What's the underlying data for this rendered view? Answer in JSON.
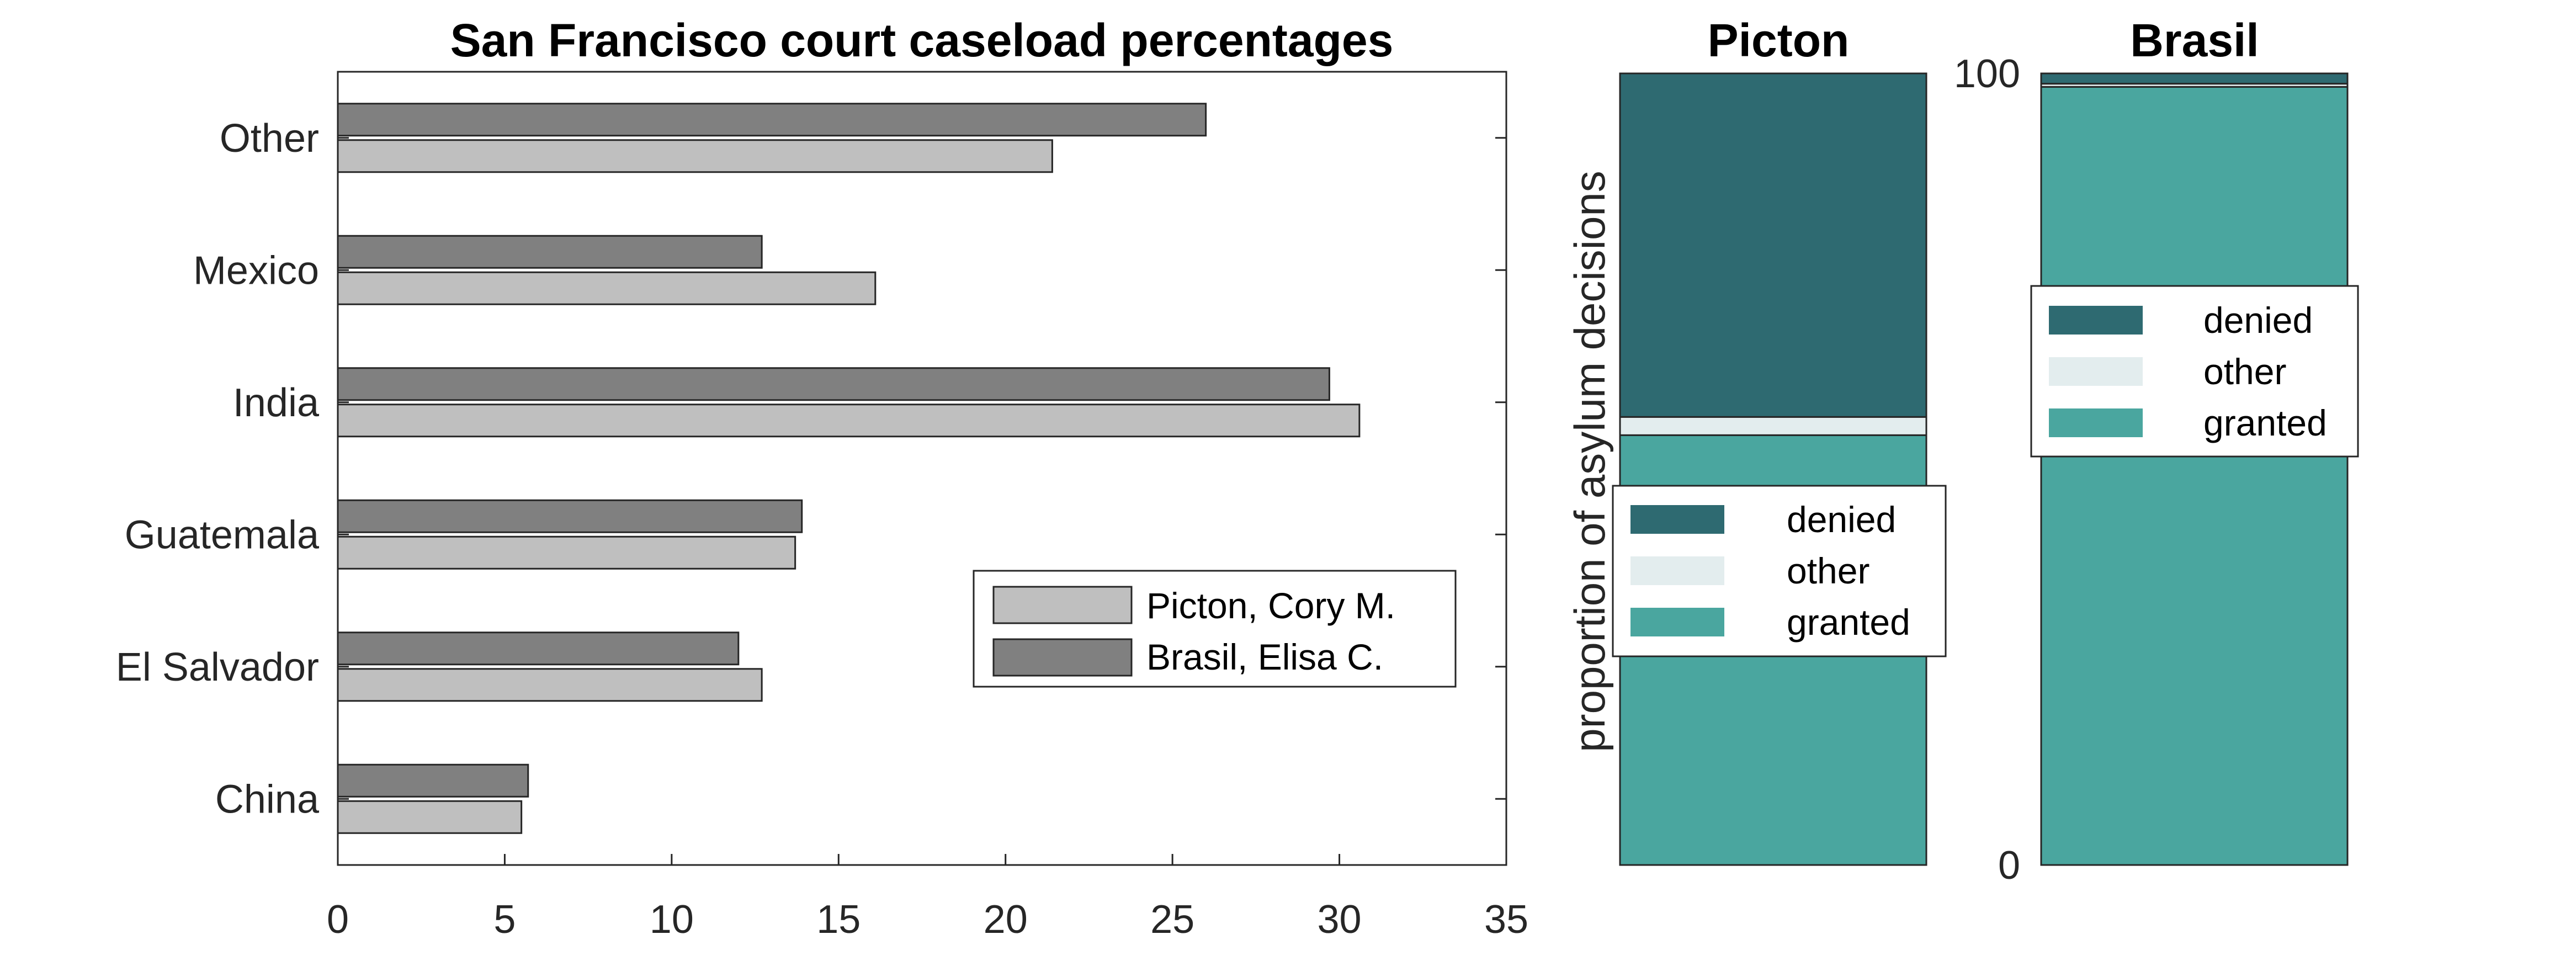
{
  "chart_data": [
    {
      "type": "bar",
      "orientation": "horizontal",
      "title": "San Francisco court caseload percentages",
      "xlabel": "",
      "ylabel": "",
      "categories": [
        "Other",
        "Mexico",
        "India",
        "Guatemala",
        "El Salvador",
        "China"
      ],
      "series": [
        {
          "name": "Brasil, Elisa C.",
          "color": "#808080",
          "values": [
            26.0,
            12.7,
            29.7,
            13.9,
            12.0,
            5.7
          ]
        },
        {
          "name": "Picton, Cory M.",
          "color": "#bfbfbf",
          "values": [
            21.4,
            16.1,
            30.6,
            13.7,
            12.7,
            5.5
          ]
        }
      ],
      "xlim": [
        0,
        35
      ],
      "xticks": [
        0,
        5,
        10,
        15,
        20,
        25,
        30,
        35
      ],
      "legend_entries": [
        "Picton, Cory M.",
        "Brasil, Elisa C."
      ],
      "legend_position": "lower-right",
      "grid": false
    },
    {
      "type": "bar",
      "stacked": true,
      "title": "Picton",
      "xlabel": "",
      "ylabel": "proportion of asylum decisions",
      "ylim": [
        0,
        100
      ],
      "yticks": [],
      "segments": [
        {
          "name": "granted",
          "color": "#4aa69f",
          "value": 54.3
        },
        {
          "name": "other",
          "color": "#e3edee",
          "value": 2.3
        },
        {
          "name": "denied",
          "color": "#2e6a71",
          "value": 43.4
        }
      ],
      "legend_entries": [
        "denied",
        "other",
        "granted"
      ],
      "legend_position": "bottom-left"
    },
    {
      "type": "bar",
      "stacked": true,
      "title": "Brasil",
      "xlabel": "",
      "ylabel": "",
      "ylim": [
        0,
        100
      ],
      "yticks": [
        0,
        100
      ],
      "segments": [
        {
          "name": "granted",
          "color": "#4aa69f",
          "value": 98.3
        },
        {
          "name": "other",
          "color": "#e3edee",
          "value": 0.4
        },
        {
          "name": "denied",
          "color": "#2e6a71",
          "value": 1.3
        }
      ],
      "legend_entries": [
        "denied",
        "other",
        "granted"
      ],
      "legend_position": "top-center"
    }
  ]
}
